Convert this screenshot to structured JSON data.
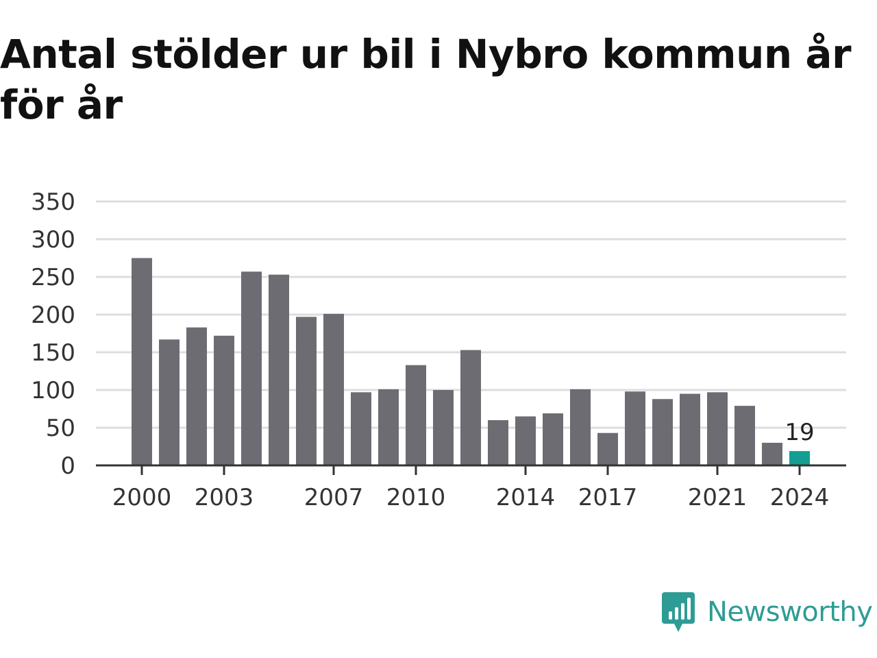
{
  "title": "Antal stölder ur bil i Nybro kommun år för år",
  "brand": {
    "name": "Newsworthy",
    "icon": "newsworthy-logo-icon",
    "color": "#2e9c94"
  },
  "chart_data": {
    "type": "bar",
    "title": "Antal stölder ur bil i Nybro kommun år för år",
    "xlabel": "",
    "ylabel": "",
    "ylim": [
      0,
      350
    ],
    "yticks": [
      0,
      50,
      100,
      150,
      200,
      250,
      300,
      350
    ],
    "grid": true,
    "legend": "none",
    "categories": [
      "2000",
      "2001",
      "2002",
      "2003",
      "2004",
      "2005",
      "2006",
      "2007",
      "2008",
      "2009",
      "2010",
      "2011",
      "2012",
      "2013",
      "2014",
      "2015",
      "2016",
      "2017",
      "2018",
      "2019",
      "2020",
      "2021",
      "2022",
      "2023",
      "2024"
    ],
    "xtick_labels": [
      "2000",
      "2003",
      "2007",
      "2010",
      "2014",
      "2017",
      "2021",
      "2024"
    ],
    "values": [
      275,
      167,
      183,
      172,
      257,
      253,
      197,
      201,
      97,
      101,
      133,
      100,
      153,
      60,
      65,
      69,
      101,
      43,
      98,
      88,
      95,
      97,
      79,
      30,
      19
    ],
    "highlight": {
      "category": "2024",
      "label": "19"
    },
    "colors": {
      "bar": "#6d6c72",
      "highlight": "#139e93",
      "grid": "#dddddd",
      "axis": "#333333",
      "tick_text": "#333333"
    }
  }
}
